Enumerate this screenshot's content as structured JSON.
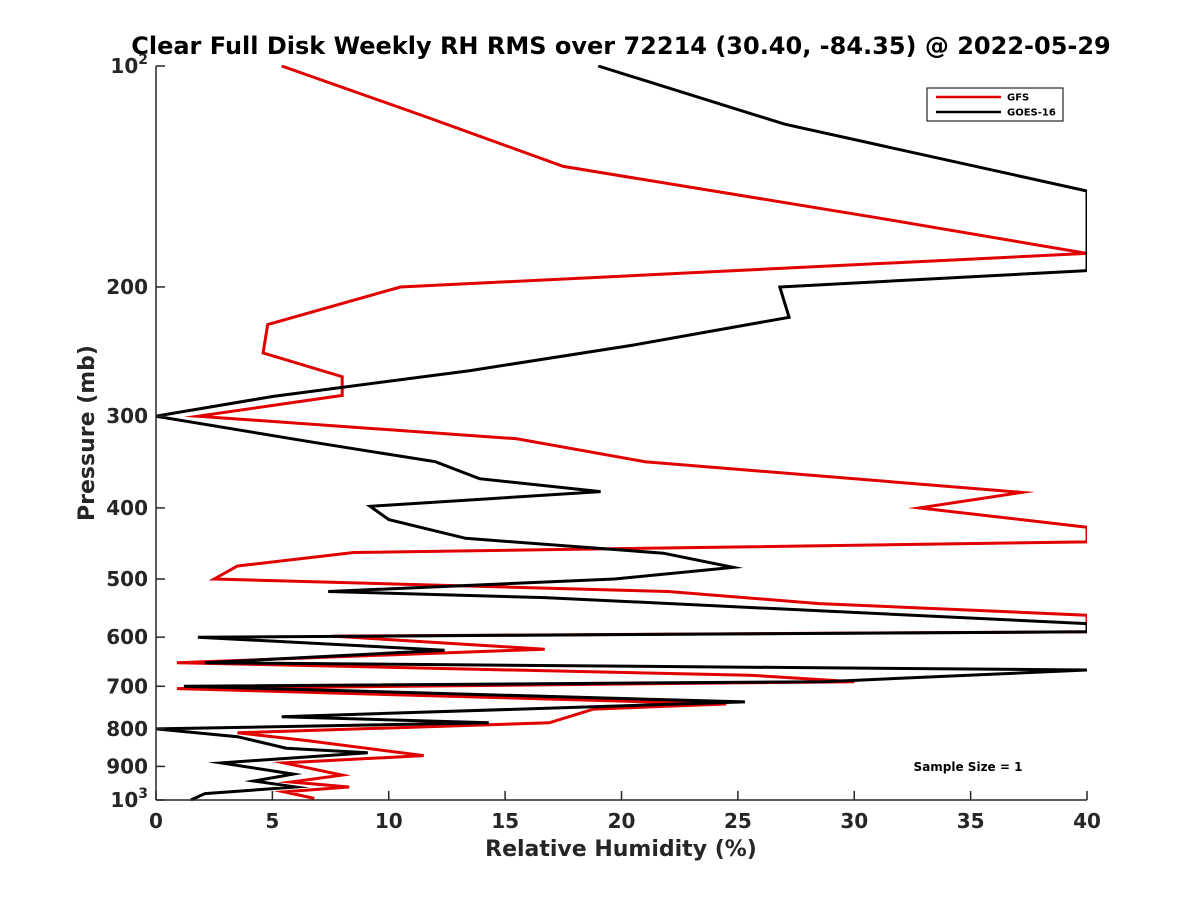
{
  "chart_data": {
    "type": "line",
    "title": "Clear Full Disk Weekly RH RMS over 72214 (30.40, -84.35) @ 2022-05-29",
    "xlabel": "Relative Humidity (%)",
    "ylabel": "Pressure (mb)",
    "xlim": [
      0,
      40
    ],
    "ylim": [
      100,
      1000
    ],
    "yscale": "log",
    "y_reversed": true,
    "grid": false,
    "x_ticks": [
      0,
      5,
      10,
      15,
      20,
      25,
      30,
      35,
      40
    ],
    "x_tick_labels": [
      "0",
      "5",
      "10",
      "15",
      "20",
      "25",
      "30",
      "35",
      "40"
    ],
    "y_ticks": [
      100,
      200,
      300,
      400,
      500,
      600,
      700,
      800,
      900,
      1000
    ],
    "y_tick_labels": [
      {
        "base": "10",
        "exp": "2"
      },
      {
        "base": "200",
        "exp": ""
      },
      {
        "base": "300",
        "exp": ""
      },
      {
        "base": "400",
        "exp": ""
      },
      {
        "base": "500",
        "exp": ""
      },
      {
        "base": "600",
        "exp": ""
      },
      {
        "base": "700",
        "exp": ""
      },
      {
        "base": "800",
        "exp": ""
      },
      {
        "base": "900",
        "exp": ""
      },
      {
        "base": "10",
        "exp": "3"
      }
    ],
    "legend_position": "top-right",
    "annotation": "Sample Size = 1",
    "series": [
      {
        "name": "GFS",
        "color": "#e00000",
        "points": [
          [
            5.4,
            100
          ],
          [
            11.5,
            117
          ],
          [
            17.5,
            137
          ],
          [
            31.0,
            161
          ],
          [
            40.0,
            180
          ],
          [
            10.5,
            200
          ],
          [
            4.8,
            225
          ],
          [
            4.6,
            246
          ],
          [
            8.0,
            265
          ],
          [
            8.0,
            281
          ],
          [
            1.8,
            300
          ],
          [
            15.5,
            322
          ],
          [
            21.0,
            346
          ],
          [
            37.2,
            381
          ],
          [
            32.8,
            400
          ],
          [
            40.0,
            425
          ],
          [
            40.0,
            445
          ],
          [
            8.5,
            460
          ],
          [
            3.5,
            480
          ],
          [
            2.5,
            500
          ],
          [
            22.0,
            520
          ],
          [
            28.5,
            540
          ],
          [
            40.0,
            560
          ],
          [
            40.0,
            590
          ],
          [
            7.6,
            598
          ],
          [
            16.7,
            623
          ],
          [
            0.9,
            650
          ],
          [
            25.5,
            676
          ],
          [
            30.0,
            690
          ],
          [
            0.9,
            705
          ],
          [
            24.5,
            740
          ],
          [
            18.8,
            752
          ],
          [
            16.9,
            785
          ],
          [
            3.5,
            810
          ],
          [
            6.5,
            830
          ],
          [
            11.5,
            870
          ],
          [
            5.5,
            890
          ],
          [
            7.3,
            915
          ],
          [
            8.0,
            925
          ],
          [
            5.8,
            945
          ],
          [
            8.3,
            960
          ],
          [
            5.5,
            975
          ],
          [
            6.8,
            995
          ]
        ]
      },
      {
        "name": "GOES-16",
        "color": "#000000",
        "points": [
          [
            19.0,
            100
          ],
          [
            27.0,
            120
          ],
          [
            40.0,
            148
          ],
          [
            40.0,
            190
          ],
          [
            26.8,
            200
          ],
          [
            27.2,
            220
          ],
          [
            20.5,
            240
          ],
          [
            13.5,
            260
          ],
          [
            5.0,
            282
          ],
          [
            0.0,
            300
          ],
          [
            6.6,
            325
          ],
          [
            12.0,
            346
          ],
          [
            13.9,
            365
          ],
          [
            19.1,
            380
          ],
          [
            9.2,
            398
          ],
          [
            10.0,
            415
          ],
          [
            13.3,
            440
          ],
          [
            21.8,
            461
          ],
          [
            24.8,
            482
          ],
          [
            19.7,
            500
          ],
          [
            7.4,
            520
          ],
          [
            16.7,
            530
          ],
          [
            40.0,
            575
          ],
          [
            40.0,
            590
          ],
          [
            1.8,
            600
          ],
          [
            12.4,
            625
          ],
          [
            2.1,
            650
          ],
          [
            40.0,
            665
          ],
          [
            28.7,
            690
          ],
          [
            1.2,
            700
          ],
          [
            25.3,
            735
          ],
          [
            5.4,
            770
          ],
          [
            14.3,
            785
          ],
          [
            0.0,
            800
          ],
          [
            3.5,
            820
          ],
          [
            5.6,
            850
          ],
          [
            9.1,
            862
          ],
          [
            2.8,
            890
          ],
          [
            5.9,
            922
          ],
          [
            4.2,
            942
          ],
          [
            6.0,
            960
          ],
          [
            2.1,
            980
          ],
          [
            1.5,
            1000
          ]
        ]
      }
    ]
  }
}
